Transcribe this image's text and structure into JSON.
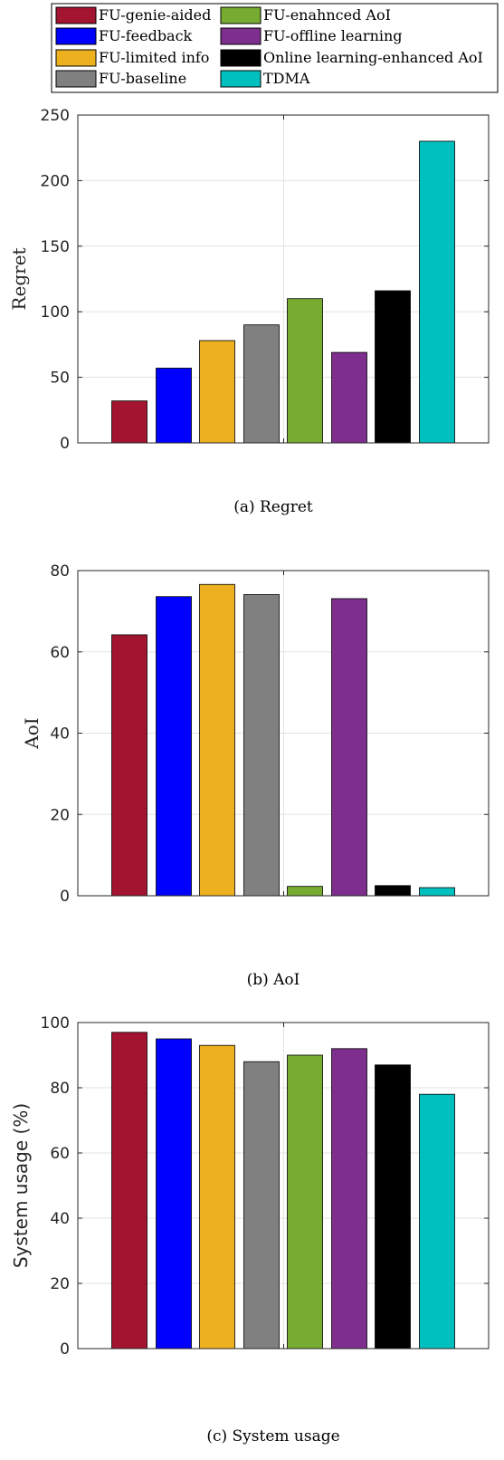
{
  "legend": {
    "entries": [
      {
        "label": "FU-genie-aided",
        "color": "#a2142f"
      },
      {
        "label": "FU-feedback",
        "color": "#0000ff"
      },
      {
        "label": "FU-limited info",
        "color": "#edb120"
      },
      {
        "label": "FU-baseline",
        "color": "#808080"
      },
      {
        "label": "FU-enahnced AoI",
        "color": "#77ac30"
      },
      {
        "label": "FU-offline learning",
        "color": "#7e2f8e"
      },
      {
        "label": "Online learning-enhanced AoI",
        "color": "#000000"
      },
      {
        "label": "TDMA",
        "color": "#00bfbf"
      }
    ]
  },
  "chart_data": [
    {
      "type": "bar",
      "caption": "(a) Regret",
      "ylabel": "Regret",
      "ylim": [
        0,
        250
      ],
      "yticks": [
        0,
        50,
        100,
        150,
        200,
        250
      ],
      "grid": true,
      "values": [
        32,
        57,
        78,
        90,
        110,
        69,
        116,
        230
      ]
    },
    {
      "type": "bar",
      "caption": "(b) AoI",
      "ylabel": "AoI",
      "ylim": [
        0,
        80
      ],
      "yticks": [
        0,
        20,
        40,
        60,
        80
      ],
      "grid": true,
      "values": [
        64.2,
        73.6,
        76.6,
        74.1,
        2.3,
        73.1,
        2.5,
        2.0
      ]
    },
    {
      "type": "bar",
      "caption": "(c) System usage",
      "ylabel": "System usage (%)",
      "ylim": [
        0,
        100
      ],
      "yticks": [
        0,
        20,
        40,
        60,
        80,
        100
      ],
      "grid": true,
      "values": [
        97,
        95,
        93,
        88,
        90,
        92,
        87,
        78
      ]
    }
  ]
}
